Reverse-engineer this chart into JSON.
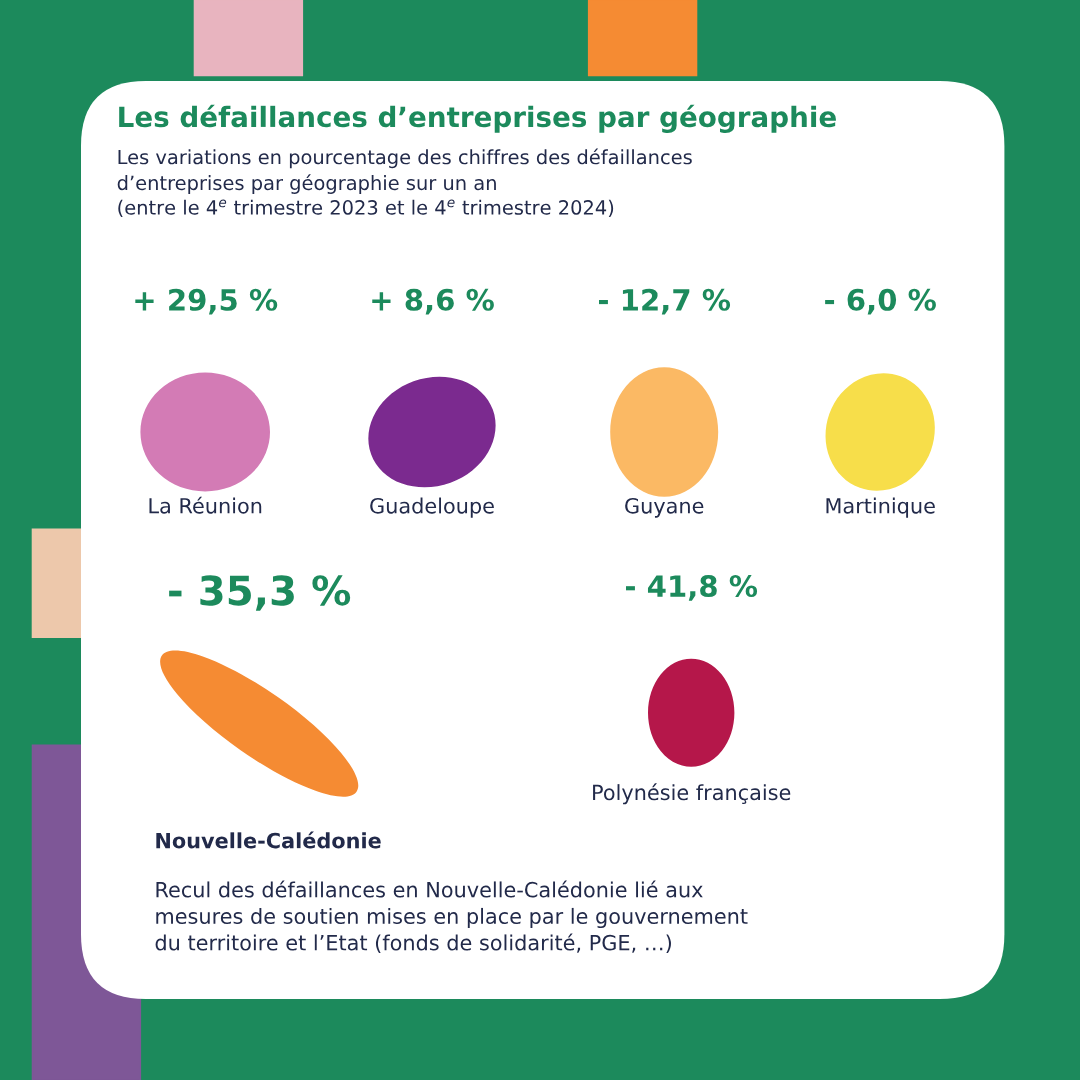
{
  "chart_data": {
    "type": "other",
    "title": "Les défaillances d’entreprises par géographie",
    "subtitle": "Les variations en pourcentage des chiffres des défaillances\nd’entreprises par géographie sur un an\n(entre le 4$^{e}$ trimestre 2023 et le 4$^{e}$ trimestre 2024)",
    "categories": [
      "La Réunion",
      "Guadeloupe",
      "Guyane",
      "Martinique",
      "Nouvelle-Calédonie",
      "Polynésie française"
    ],
    "values": [
      29.5,
      8.6,
      -12.7,
      -6.0,
      -35.3,
      -41.8
    ],
    "value_labels": [
      "+ 29,5 %",
      "+ 8,6 %",
      "- 12,7 %",
      "- 6,0 %",
      "- 35,3 %",
      "- 41,8 %"
    ],
    "colors": [
      "#d37bb5",
      "#7b2a8f",
      "#fbb964",
      "#f7de4a",
      "#f58b33",
      "#b5174a"
    ],
    "annotations": [
      "Recul des défaillances en Nouvelle-Calédonie lié aux\nmesures de soutien mises en place par le gouvernement\ndu territoire et l’Etat (fonds de solidarité, PGE, …)"
    ]
  }
}
